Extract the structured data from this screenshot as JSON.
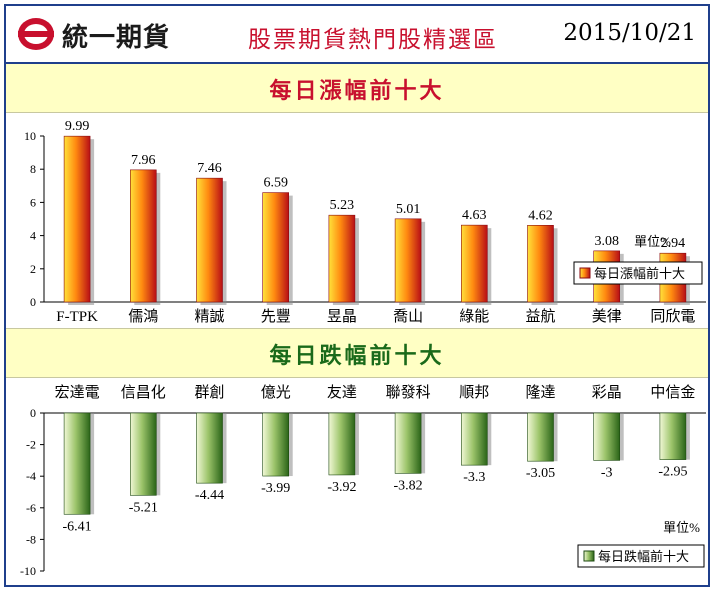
{
  "header": {
    "company": "統一期貨",
    "subtitle": "股票期貨熱門股精選區",
    "date": "2015/10/21"
  },
  "sections": {
    "gainers_title": "每日漲幅前十大",
    "losers_title": "每日跌幅前十大"
  },
  "colors": {
    "brand_red": "#c8102e",
    "gain_bar_light": "#ffd21a",
    "gain_bar_dark": "#c0101a",
    "loss_bar_light": "#e3f0bc",
    "loss_bar_dark": "#2f6e1c",
    "band_bg": "#ffffc4"
  },
  "chart_data": [
    {
      "type": "bar",
      "title": "每日漲幅前十大",
      "categories": [
        "F-TPK",
        "儒鴻",
        "精誠",
        "先豐",
        "昱晶",
        "喬山",
        "綠能",
        "益航",
        "美律",
        "同欣電"
      ],
      "series": [
        {
          "name": "每日漲幅前十大",
          "values": [
            9.99,
            7.96,
            7.46,
            6.59,
            5.23,
            5.01,
            4.63,
            4.62,
            3.08,
            2.94
          ]
        }
      ],
      "ylim": [
        0,
        10
      ],
      "yticks": [
        0,
        2,
        4,
        6,
        8,
        10
      ],
      "unit_label": "單位%",
      "legend": "inside-right",
      "grid": false
    },
    {
      "type": "bar",
      "title": "每日跌幅前十大",
      "categories": [
        "宏達電",
        "信昌化",
        "群創",
        "億光",
        "友達",
        "聯發科",
        "順邦",
        "隆達",
        "彩晶",
        "中信金"
      ],
      "series": [
        {
          "name": "每日跌幅前十大",
          "values": [
            -6.41,
            -5.21,
            -4.44,
            -3.99,
            -3.92,
            -3.82,
            -3.3,
            -3.05,
            -3,
            -2.95
          ]
        }
      ],
      "ylim": [
        -10,
        0
      ],
      "yticks": [
        0,
        -2,
        -4,
        -6,
        -8,
        -10
      ],
      "unit_label": "單位%",
      "legend": "bottom-right",
      "grid": false
    }
  ]
}
